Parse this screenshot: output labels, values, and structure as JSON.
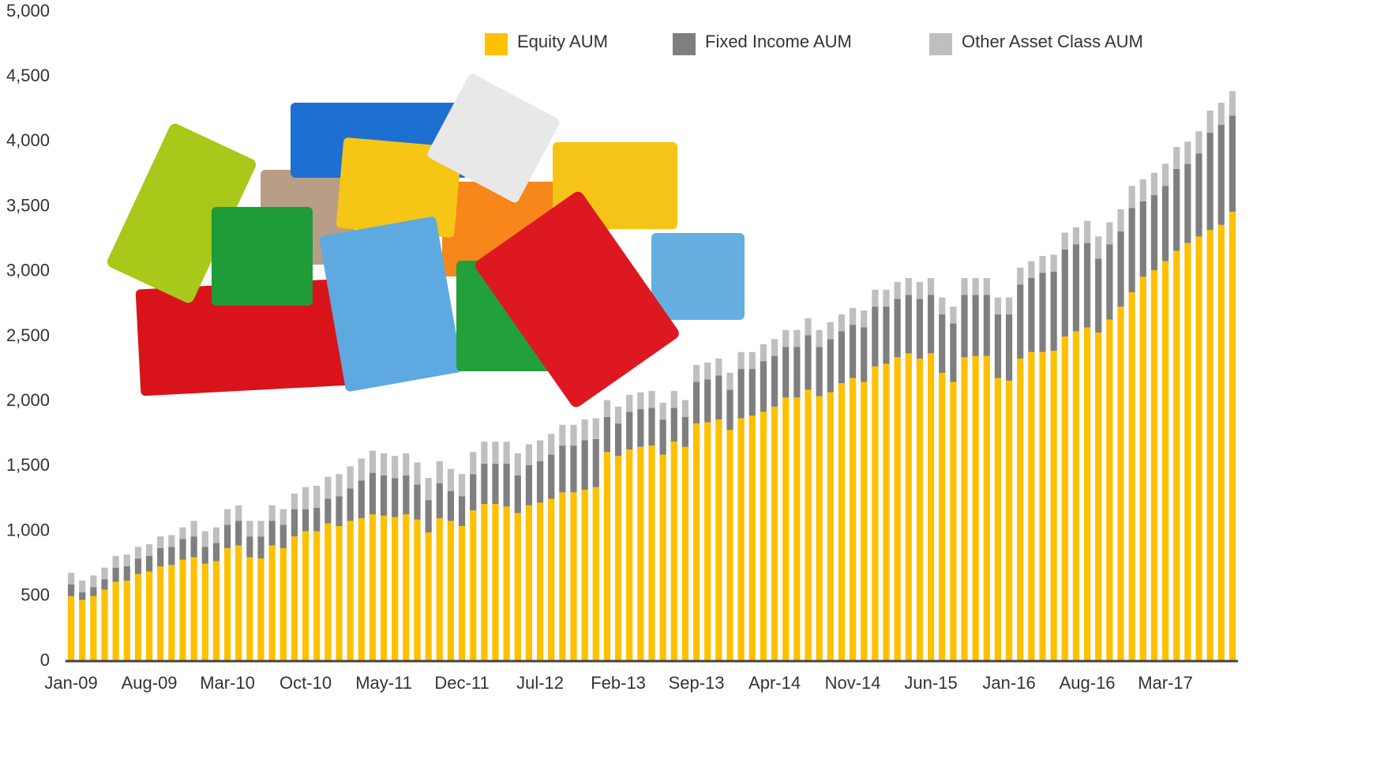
{
  "chart_data": {
    "type": "stacked_bar",
    "categories": [
      "Jan-09",
      null,
      null,
      null,
      null,
      null,
      null,
      "Aug-09",
      null,
      null,
      null,
      null,
      null,
      null,
      "Mar-10",
      null,
      null,
      null,
      null,
      null,
      null,
      "Oct-10",
      null,
      null,
      null,
      null,
      null,
      null,
      "May-11",
      null,
      null,
      null,
      null,
      null,
      null,
      "Dec-11",
      null,
      null,
      null,
      null,
      null,
      null,
      "Jul-12",
      null,
      null,
      null,
      null,
      null,
      null,
      "Feb-13",
      null,
      null,
      null,
      null,
      null,
      null,
      "Sep-13",
      null,
      null,
      null,
      null,
      null,
      null,
      "Apr-14",
      null,
      null,
      null,
      null,
      null,
      null,
      "Nov-14",
      null,
      null,
      null,
      null,
      null,
      null,
      "Jun-15",
      null,
      null,
      null,
      null,
      null,
      null,
      "Jan-16",
      null,
      null,
      null,
      null,
      null,
      null,
      "Aug-16",
      null,
      null,
      null,
      null,
      null,
      null,
      "Mar-17",
      null,
      null,
      null,
      null,
      null,
      null
    ],
    "series": [
      {
        "name": "Equity AUM",
        "color": "#FFC000",
        "values": [
          500,
          470,
          500,
          550,
          610,
          620,
          670,
          690,
          730,
          740,
          780,
          800,
          750,
          770,
          870,
          890,
          800,
          790,
          890,
          870,
          960,
          1000,
          1000,
          1060,
          1040,
          1080,
          1100,
          1130,
          1120,
          1110,
          1130,
          1090,
          990,
          1100,
          1080,
          1040,
          1160,
          1210,
          1210,
          1190,
          1140,
          1200,
          1220,
          1250,
          1300,
          1300,
          1320,
          1340,
          1610,
          1580,
          1630,
          1650,
          1660,
          1590,
          1690,
          1650,
          1830,
          1840,
          1860,
          1780,
          1870,
          1890,
          1920,
          1960,
          2030,
          2030,
          2090,
          2040,
          2070,
          2140,
          2180,
          2150,
          2270,
          2290,
          2340,
          2370,
          2330,
          2370,
          2220,
          2150,
          2340,
          2350,
          2350,
          2180,
          2160,
          2330,
          2380,
          2380,
          2390,
          2500,
          2540,
          2570,
          2530,
          2630,
          2730,
          2840,
          2960,
          3010,
          3080,
          3160,
          3220,
          3270,
          3320,
          3360,
          3460
        ]
      },
      {
        "name": "Fixed Income AUM",
        "color": "#7F7F7F",
        "values": [
          90,
          60,
          70,
          80,
          110,
          110,
          120,
          120,
          140,
          140,
          160,
          160,
          130,
          140,
          180,
          190,
          160,
          170,
          190,
          180,
          210,
          170,
          180,
          190,
          230,
          250,
          290,
          320,
          310,
          300,
          300,
          270,
          250,
          270,
          230,
          230,
          280,
          310,
          310,
          330,
          290,
          310,
          320,
          340,
          360,
          360,
          380,
          370,
          270,
          250,
          290,
          290,
          290,
          270,
          260,
          230,
          320,
          330,
          340,
          310,
          380,
          360,
          390,
          390,
          390,
          390,
          420,
          380,
          410,
          400,
          410,
          420,
          460,
          440,
          450,
          450,
          460,
          450,
          450,
          450,
          480,
          470,
          470,
          490,
          510,
          570,
          570,
          610,
          610,
          670,
          670,
          650,
          570,
          580,
          580,
          650,
          580,
          580,
          580,
          630,
          610,
          640,
          750,
          770,
          740
        ]
      },
      {
        "name": "Other Asset Class AUM",
        "color": "#BFBFBF",
        "values": [
          90,
          90,
          90,
          90,
          90,
          90,
          90,
          90,
          90,
          90,
          90,
          120,
          120,
          120,
          120,
          120,
          120,
          120,
          120,
          120,
          120,
          170,
          170,
          170,
          170,
          170,
          170,
          170,
          170,
          170,
          170,
          170,
          170,
          170,
          170,
          170,
          170,
          170,
          170,
          170,
          170,
          160,
          160,
          160,
          160,
          160,
          160,
          160,
          130,
          130,
          130,
          130,
          130,
          130,
          130,
          130,
          130,
          130,
          130,
          130,
          130,
          130,
          130,
          130,
          130,
          130,
          130,
          130,
          130,
          130,
          130,
          130,
          130,
          130,
          130,
          130,
          130,
          130,
          130,
          130,
          130,
          130,
          130,
          130,
          130,
          130,
          130,
          130,
          130,
          130,
          130,
          170,
          170,
          170,
          170,
          170,
          170,
          170,
          170,
          170,
          170,
          170,
          170,
          170,
          190
        ]
      }
    ],
    "ylim": [
      0,
      5000
    ],
    "yticks": [
      0,
      500,
      {
        "value": 1000,
        "label": "1,000"
      },
      {
        "value": 1500,
        "label": "1,500"
      },
      {
        "value": 2000,
        "label": "2,000"
      },
      {
        "value": 2500,
        "label": "2,500"
      },
      {
        "value": 3000,
        "label": "3,000"
      },
      {
        "value": 3500,
        "label": "3,500"
      },
      {
        "value": 4000,
        "label": "4,000"
      },
      {
        "value": 4500,
        "label": "4,500"
      },
      {
        "value": 5000,
        "label": "5,000"
      }
    ],
    "grid": false,
    "legend": "top"
  }
}
